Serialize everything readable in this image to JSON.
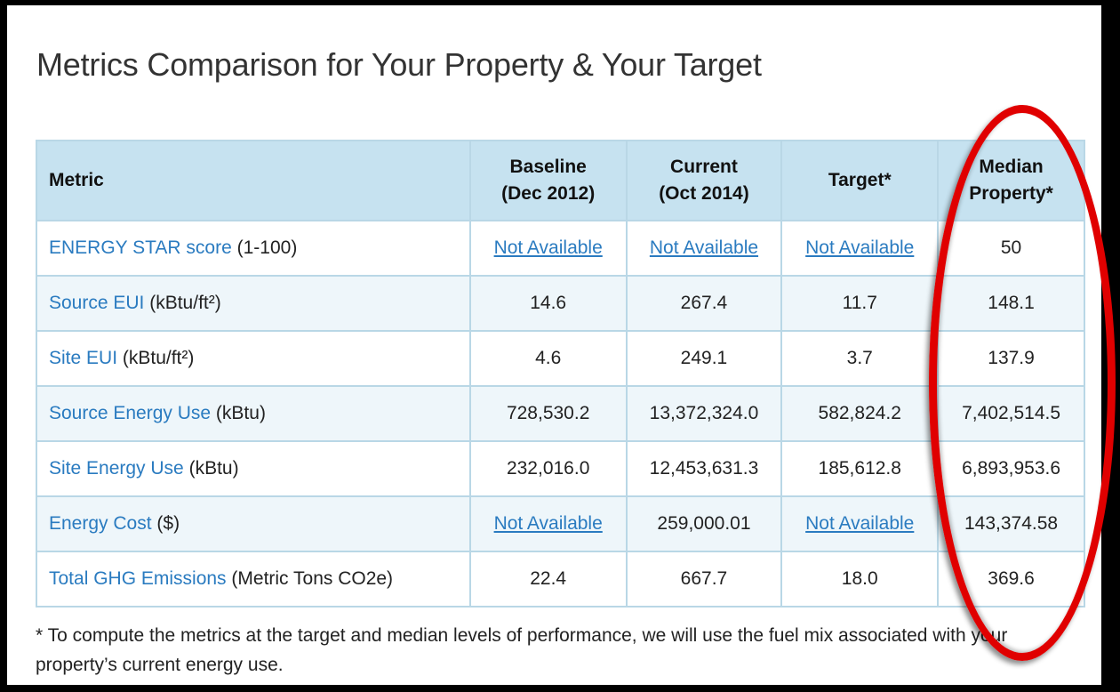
{
  "title": "Metrics Comparison for Your Property & Your Target",
  "table": {
    "headers": {
      "metric": "Metric",
      "baseline_line1": "Baseline",
      "baseline_line2": "(Dec 2012)",
      "current_line1": "Current",
      "current_line2": "(Oct 2014)",
      "target": "Target*",
      "median_line1": "Median",
      "median_line2": "Property*"
    },
    "rows": [
      {
        "metric_link": "ENERGY STAR score",
        "unit": " (1-100)",
        "baseline": "Not Available",
        "current": "Not Available",
        "target": "Not Available",
        "median": "50"
      },
      {
        "metric_link": "Source EUI",
        "unit": " (kBtu/ft²)",
        "baseline": "14.6",
        "current": "267.4",
        "target": "11.7",
        "median": "148.1"
      },
      {
        "metric_link": "Site EUI",
        "unit": " (kBtu/ft²)",
        "baseline": "4.6",
        "current": "249.1",
        "target": "3.7",
        "median": "137.9"
      },
      {
        "metric_link": "Source Energy Use",
        "unit": " (kBtu)",
        "baseline": "728,530.2",
        "current": "13,372,324.0",
        "target": "582,824.2",
        "median": "7,402,514.5"
      },
      {
        "metric_link": "Site Energy Use",
        "unit": " (kBtu)",
        "baseline": "232,016.0",
        "current": "12,453,631.3",
        "target": "185,612.8",
        "median": "6,893,953.6"
      },
      {
        "metric_link": "Energy Cost",
        "unit": " ($)",
        "baseline": "Not Available",
        "current": "259,000.01",
        "target": "Not Available",
        "median": "143,374.58"
      },
      {
        "metric_link": "Total GHG Emissions",
        "unit": " (Metric Tons CO2e)",
        "baseline": "22.4",
        "current": "667.7",
        "target": "18.0",
        "median": "369.6"
      }
    ]
  },
  "footnote": "* To compute the metrics at the target and median levels of performance, we will use the fuel mix associated with your property’s current energy use.",
  "colors": {
    "link": "#2a7bc0",
    "header_bg": "#c6e2f0",
    "highlight_oval": "#e00000"
  }
}
